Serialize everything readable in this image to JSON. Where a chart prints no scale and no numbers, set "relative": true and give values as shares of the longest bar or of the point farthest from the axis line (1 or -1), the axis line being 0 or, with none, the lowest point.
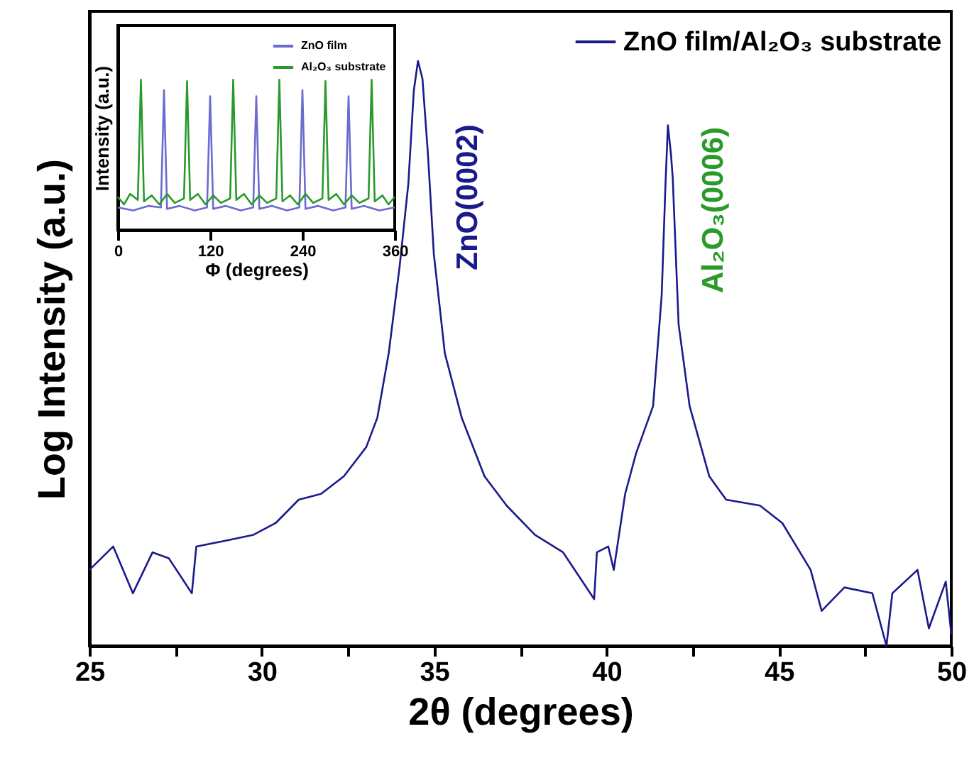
{
  "chart_data": [
    {
      "type": "line",
      "relative": true,
      "xlabel": "2θ (degrees)",
      "ylabel": "Log Intensity (a.u.)",
      "xlim": [
        25,
        50
      ],
      "xticks": [
        25,
        {
          "value": 27.5,
          "label": null
        },
        30,
        {
          "value": 32.5,
          "label": null
        },
        35,
        {
          "value": 37.5,
          "label": null
        },
        40,
        {
          "value": 42.5,
          "label": null
        },
        45,
        {
          "value": 47.5,
          "label": null
        },
        50
      ],
      "legend": "top right",
      "grid": false,
      "x": [
        25,
        25.69,
        26.26,
        26.83,
        27.3,
        27.97,
        28.1,
        28.95,
        29.76,
        30.4,
        31.07,
        31.72,
        32.38,
        33.03,
        33.35,
        33.68,
        34.0,
        34.25,
        34.41,
        34.53,
        34.66,
        34.82,
        34.99,
        35.31,
        35.8,
        36.46,
        37.1,
        37.92,
        38.74,
        39.64,
        39.72,
        40.05,
        40.21,
        40.54,
        40.86,
        41.35,
        41.6,
        41.71,
        41.78,
        41.87,
        41.92,
        42.09,
        42.41,
        42.98,
        43.47,
        44.45,
        45.1,
        45.92,
        46.24,
        46.9,
        47.71,
        48.12,
        48.29,
        49.02,
        49.35,
        49.84,
        50
      ],
      "series": [
        {
          "name": "ZnO film/Al₂O₃ substrate",
          "color": "#1a1a8c",
          "values": [
            0.13,
            0.17,
            0.09,
            0.16,
            0.15,
            0.09,
            0.17,
            0.18,
            0.19,
            0.21,
            0.25,
            0.26,
            0.29,
            0.34,
            0.39,
            0.5,
            0.65,
            0.79,
            0.95,
            1.0,
            0.97,
            0.84,
            0.67,
            0.5,
            0.39,
            0.29,
            0.24,
            0.19,
            0.16,
            0.08,
            0.16,
            0.17,
            0.13,
            0.26,
            0.33,
            0.41,
            0.6,
            0.79,
            0.89,
            0.84,
            0.8,
            0.55,
            0.41,
            0.29,
            0.25,
            0.24,
            0.21,
            0.13,
            0.06,
            0.1,
            0.09,
            0.0,
            0.09,
            0.13,
            0.03,
            0.11,
            0.02
          ]
        }
      ],
      "annotations": [
        "ZnO(0002)",
        "Al₂O₃(0006)"
      ]
    },
    {
      "type": "line",
      "relative": true,
      "xlabel": "Φ (degrees)",
      "ylabel": "Intensity (a.u.)",
      "xlim": [
        0,
        360
      ],
      "xticks": [
        0,
        120,
        240,
        360
      ],
      "legend": "top right",
      "grid": false,
      "series": [
        {
          "name": "ZnO film",
          "color": "#6b6bd0",
          "x": [
            0,
            20,
            40,
            56,
            60,
            64,
            80,
            100,
            116,
            120,
            124,
            140,
            160,
            176,
            180,
            184,
            200,
            220,
            236,
            240,
            244,
            260,
            280,
            296,
            300,
            304,
            320,
            340,
            360
          ],
          "values": [
            0.15,
            0.13,
            0.16,
            0.15,
            0.93,
            0.14,
            0.16,
            0.13,
            0.15,
            0.89,
            0.14,
            0.16,
            0.13,
            0.15,
            0.89,
            0.14,
            0.16,
            0.13,
            0.15,
            0.93,
            0.14,
            0.16,
            0.13,
            0.15,
            0.89,
            0.14,
            0.16,
            0.13,
            0.15
          ]
        },
        {
          "name": "Al₂O₃ substrate",
          "color": "#2a9a2a",
          "x": [
            0,
            8,
            16,
            26,
            30,
            34,
            44,
            54,
            64,
            74,
            86,
            90,
            94,
            104,
            114,
            124,
            134,
            146,
            150,
            154,
            164,
            174,
            184,
            194,
            206,
            210,
            214,
            224,
            234,
            244,
            254,
            266,
            270,
            274,
            284,
            294,
            304,
            314,
            326,
            330,
            334,
            344,
            352,
            360
          ],
          "values": [
            0.22,
            0.17,
            0.24,
            0.2,
            1.0,
            0.19,
            0.23,
            0.17,
            0.24,
            0.18,
            0.21,
            0.99,
            0.2,
            0.24,
            0.17,
            0.23,
            0.18,
            0.21,
            1.0,
            0.2,
            0.24,
            0.17,
            0.23,
            0.18,
            0.21,
            1.0,
            0.19,
            0.23,
            0.17,
            0.24,
            0.18,
            0.21,
            0.99,
            0.2,
            0.24,
            0.17,
            0.23,
            0.18,
            0.21,
            1.0,
            0.19,
            0.23,
            0.17,
            0.22
          ]
        }
      ]
    }
  ]
}
